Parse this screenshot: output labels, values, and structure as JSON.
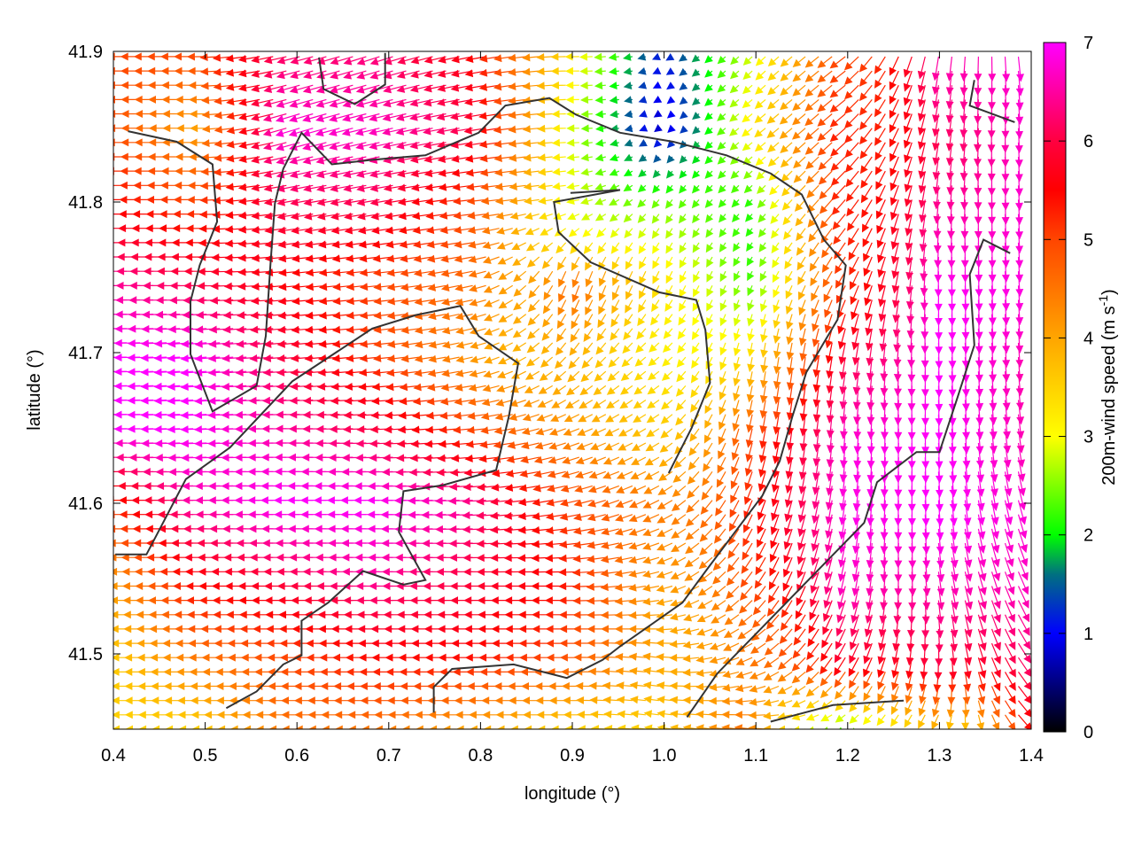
{
  "chart_data": {
    "type": "vector-field",
    "xlabel": "longitude (°)",
    "ylabel": "latitude (°)",
    "colorbar_label": "200m-wind speed (m s",
    "colorbar_label_sup": "-1",
    "colorbar_label_end": ")",
    "xlim": [
      0.4,
      1.4
    ],
    "ylim": [
      41.45,
      41.9
    ],
    "clim": [
      0,
      7
    ],
    "xticks": [
      "0.4",
      "0.5",
      "0.6",
      "0.7",
      "0.8",
      "0.9",
      "1.0",
      "1.1",
      "1.2",
      "1.3",
      "1.4"
    ],
    "yticks": [
      "41.5",
      "41.6",
      "41.7",
      "41.8",
      "41.9"
    ],
    "cticks": [
      "0",
      "1",
      "2",
      "3",
      "4",
      "5",
      "6",
      "7"
    ],
    "palette": [
      [
        0,
        "#000000"
      ],
      [
        1,
        "#0000ff"
      ],
      [
        1.6,
        "#007080"
      ],
      [
        2,
        "#00ff00"
      ],
      [
        3,
        "#ffff00"
      ],
      [
        4,
        "#ffa500"
      ],
      [
        5,
        "#ff4500"
      ],
      [
        5.5,
        "#ff0000"
      ],
      [
        6,
        "#ff0040"
      ],
      [
        7,
        "#ff00ff"
      ]
    ],
    "coastline_color": "#333333",
    "wind_grid": {
      "lon": [
        0.4,
        0.5,
        0.6,
        0.7,
        0.8,
        0.9,
        1.0,
        1.1,
        1.2,
        1.3,
        1.4
      ],
      "lat": [
        41.9,
        41.85,
        41.8,
        41.75,
        41.7,
        41.65,
        41.6,
        41.55,
        41.5,
        41.45
      ],
      "u": [
        [
          -5,
          -5,
          -6,
          -6,
          -5.5,
          -3.5,
          -1,
          -2,
          -4,
          -1,
          1
        ],
        [
          -5,
          -4,
          -6.5,
          -6.5,
          -6,
          -3,
          -0.5,
          -2.5,
          -4,
          -1,
          0.5
        ],
        [
          -5.5,
          -5,
          -6,
          -6,
          -5,
          -3,
          -1.5,
          -1.5,
          -3.5,
          -0.5,
          0.5
        ],
        [
          -6.5,
          -6,
          -5.5,
          -5,
          -4.5,
          -1.5,
          -1.5,
          -1,
          -2.5,
          0,
          0.5
        ],
        [
          -7,
          -7,
          -6,
          -5,
          -4,
          -2.5,
          -2.5,
          -0.5,
          -1,
          0.2,
          0.5
        ],
        [
          -7,
          -7,
          -6.5,
          -6,
          -5,
          -4,
          -3,
          -1,
          -0.5,
          0.2,
          1
        ],
        [
          -5,
          -6.5,
          -7,
          -7,
          -6.5,
          -5,
          -4,
          -2,
          -1,
          0.5,
          2
        ],
        [
          -4,
          -5.5,
          -6,
          -6.5,
          -6,
          -5.5,
          -4,
          -3,
          -1.5,
          1,
          3
        ],
        [
          -3.5,
          -4.5,
          -5,
          -5.5,
          -5.5,
          -5,
          -4,
          -4,
          -3,
          0,
          4
        ],
        [
          -3.5,
          -3.5,
          -4.5,
          -4.5,
          -4,
          -3.5,
          -3.5,
          -4.5,
          -2,
          -2,
          4.5
        ]
      ],
      "v": [
        [
          0,
          0,
          -1.5,
          -2,
          -1,
          0,
          -0.5,
          -2,
          -3,
          -6.5,
          -6.8
        ],
        [
          0,
          0,
          -2,
          -1.5,
          -1,
          0,
          -0.5,
          -2,
          -3.5,
          -6,
          -6.8
        ],
        [
          0,
          0,
          -1,
          -1,
          -0.5,
          -0.5,
          -2,
          -1.5,
          -4,
          -6.5,
          -6.8
        ],
        [
          0,
          0,
          -0.5,
          -0.5,
          -1,
          -4.5,
          -3,
          -2,
          -4.5,
          -7,
          -6.8
        ],
        [
          0,
          -0.5,
          -0.5,
          -0.5,
          -1,
          -3,
          -2,
          -3.5,
          -6,
          -7,
          -6.5
        ],
        [
          0,
          -0.3,
          0,
          -0.3,
          -0.5,
          -1.5,
          -2,
          -5,
          -6.8,
          -7,
          -6.5
        ],
        [
          0,
          0,
          0,
          0,
          -0.3,
          -1,
          -2,
          -5,
          -6.8,
          -7,
          -6.5
        ],
        [
          0,
          0,
          0,
          0,
          0,
          0,
          -1,
          -4,
          -6.5,
          -6.5,
          -6
        ],
        [
          0,
          0,
          0,
          0,
          0,
          0,
          0.5,
          -2,
          -5,
          -6,
          -5
        ],
        [
          0,
          0,
          0,
          0,
          0,
          0,
          0.5,
          0.5,
          -1,
          -3,
          -4
        ]
      ]
    },
    "coastlines": [
      [
        [
          0.416,
          41.847
        ],
        [
          0.469,
          41.84
        ],
        [
          0.508,
          41.825
        ],
        [
          0.513,
          41.787
        ],
        [
          0.494,
          41.758
        ],
        [
          0.484,
          41.734
        ],
        [
          0.484,
          41.699
        ],
        [
          0.508,
          41.661
        ],
        [
          0.556,
          41.678
        ],
        [
          0.566,
          41.711
        ],
        [
          0.571,
          41.758
        ],
        [
          0.576,
          41.799
        ],
        [
          0.585,
          41.822
        ],
        [
          0.605,
          41.846
        ],
        [
          0.638,
          41.825
        ],
        [
          0.682,
          41.828
        ],
        [
          0.74,
          41.831
        ],
        [
          0.798,
          41.846
        ],
        [
          0.827,
          41.864
        ],
        [
          0.875,
          41.869
        ],
        [
          0.904,
          41.858
        ],
        [
          0.952,
          41.846
        ],
        [
          1.01,
          41.84
        ],
        [
          1.068,
          41.831
        ],
        [
          1.116,
          41.819
        ],
        [
          1.15,
          41.805
        ],
        [
          1.174,
          41.775
        ],
        [
          1.198,
          41.758
        ],
        [
          1.189,
          41.722
        ],
        [
          1.155,
          41.687
        ],
        [
          1.14,
          41.658
        ],
        [
          1.126,
          41.628
        ],
        [
          1.107,
          41.605
        ],
        [
          1.049,
          41.558
        ],
        [
          1.02,
          41.534
        ],
        [
          0.952,
          41.505
        ],
        [
          0.933,
          41.496
        ],
        [
          0.894,
          41.484
        ],
        [
          0.836,
          41.493
        ],
        [
          0.769,
          41.49
        ],
        [
          0.749,
          41.478
        ],
        [
          0.749,
          41.461
        ]
      ],
      [
        [
          0.402,
          41.566
        ],
        [
          0.436,
          41.566
        ],
        [
          0.479,
          41.616
        ],
        [
          0.527,
          41.637
        ],
        [
          0.595,
          41.681
        ],
        [
          0.682,
          41.716
        ],
        [
          0.73,
          41.725
        ],
        [
          0.778,
          41.731
        ],
        [
          0.798,
          41.711
        ],
        [
          0.841,
          41.693
        ],
        [
          0.831,
          41.658
        ],
        [
          0.817,
          41.622
        ],
        [
          0.759,
          41.612
        ],
        [
          0.716,
          41.608
        ],
        [
          0.711,
          41.581
        ],
        [
          0.74,
          41.549
        ],
        [
          0.716,
          41.546
        ],
        [
          0.672,
          41.555
        ],
        [
          0.634,
          41.534
        ],
        [
          0.605,
          41.522
        ],
        [
          0.605,
          41.499
        ],
        [
          0.585,
          41.493
        ],
        [
          0.556,
          41.475
        ],
        [
          0.523,
          41.464
        ]
      ],
      [
        [
          1.338,
          41.881
        ],
        [
          1.333,
          41.864
        ],
        [
          1.382,
          41.853
        ]
      ],
      [
        [
          1.377,
          41.766
        ],
        [
          1.348,
          41.775
        ],
        [
          1.333,
          41.752
        ],
        [
          1.338,
          41.705
        ],
        [
          1.319,
          41.669
        ],
        [
          1.3,
          41.634
        ],
        [
          1.275,
          41.634
        ],
        [
          1.232,
          41.614
        ],
        [
          1.218,
          41.587
        ],
        [
          1.058,
          41.487
        ],
        [
          1.025,
          41.458
        ]
      ],
      [
        [
          0.624,
          41.896
        ],
        [
          0.629,
          41.875
        ],
        [
          0.663,
          41.865
        ],
        [
          0.696,
          41.878
        ],
        [
          0.696,
          41.899
        ]
      ],
      [
        [
          1.116,
          41.455
        ],
        [
          1.184,
          41.466
        ],
        [
          1.261,
          41.469
        ]
      ],
      [
        [
          0.898,
          41.806
        ],
        [
          0.952,
          41.808
        ],
        [
          0.88,
          41.8
        ],
        [
          0.885,
          41.78
        ],
        [
          0.92,
          41.76
        ],
        [
          0.995,
          41.74
        ],
        [
          1.035,
          41.735
        ],
        [
          1.045,
          41.715
        ],
        [
          1.05,
          41.68
        ],
        [
          1.03,
          41.65
        ],
        [
          1.005,
          41.62
        ]
      ]
    ]
  }
}
